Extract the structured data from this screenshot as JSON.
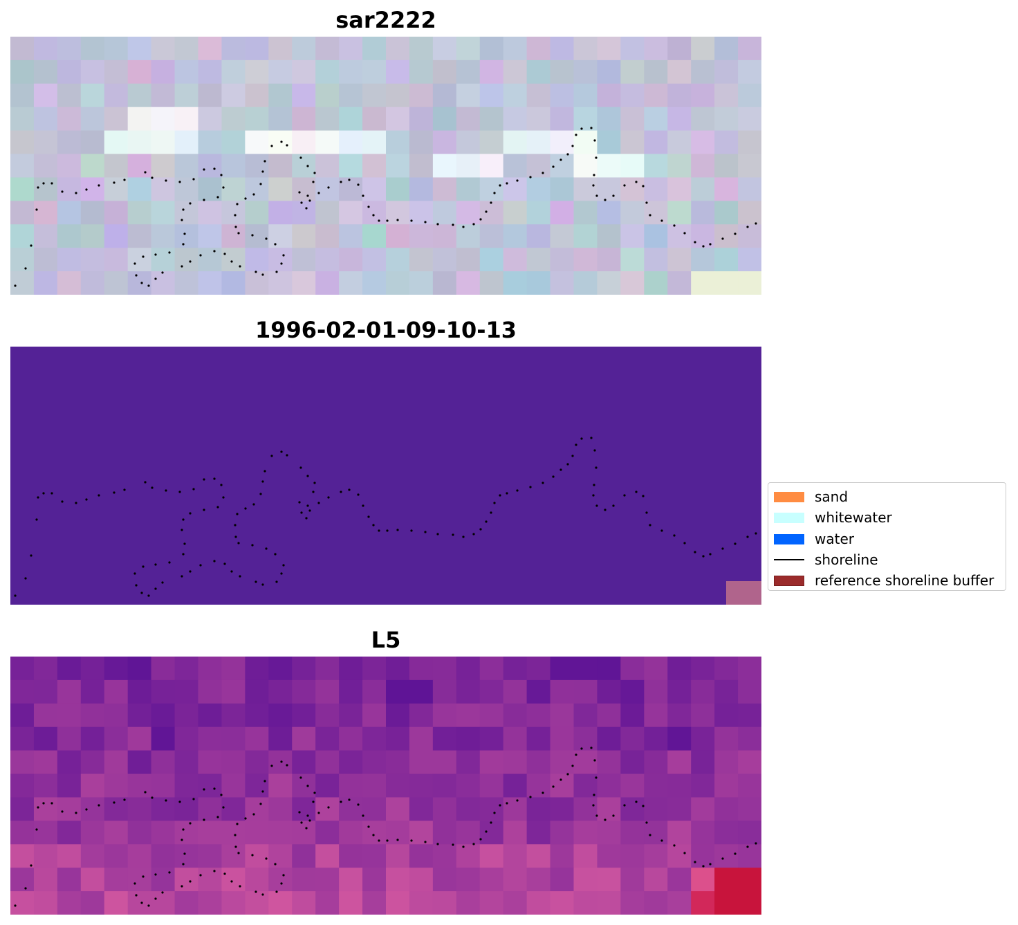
{
  "panels": [
    {
      "title": "sar2222"
    },
    {
      "title": "1996-02-01-09-10-13"
    },
    {
      "title": "L5"
    }
  ],
  "legend": {
    "items": [
      {
        "label": "sand",
        "kind": "patch",
        "color": "#ff8c42"
      },
      {
        "label": "whitewater",
        "kind": "patch",
        "color": "#c8ffff"
      },
      {
        "label": "water",
        "kind": "patch",
        "color": "#0064ff"
      },
      {
        "label": "shoreline",
        "kind": "line",
        "color": "#000000"
      },
      {
        "label": "reference shoreline buffer",
        "kind": "patch",
        "color": "#9b2b2b",
        "edge": "#7a1e1e"
      }
    ]
  },
  "colors": {
    "classified_background": "#542296",
    "classified_buffer": "#b0648c",
    "shoreline": "#000000"
  }
}
